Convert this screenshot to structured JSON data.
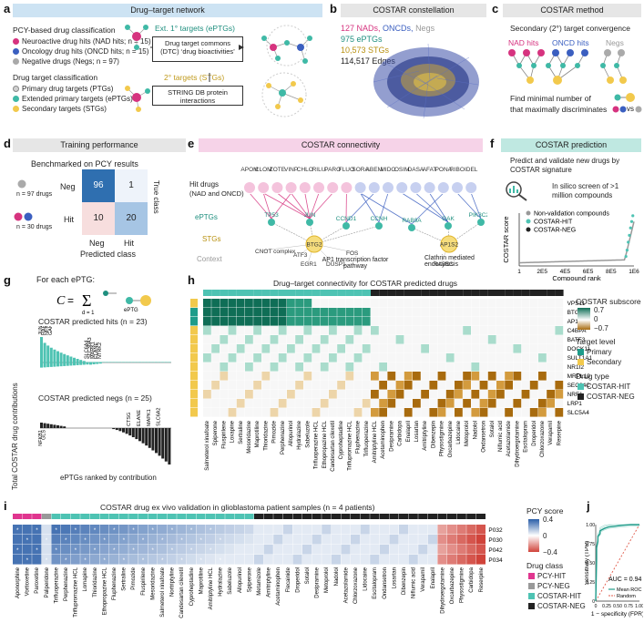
{
  "panel_a": {
    "letter": "a",
    "title": "Drug–target network",
    "pcy_heading": "PCY-based drug classification",
    "pcy_items": [
      "Neuroactive drug hits (NAD hits; n = 15)",
      "Oncology drug hits (ONCD hits; n = 15)",
      "Negative drugs (Negs; n = 97)"
    ],
    "dtc_heading": "Drug target classification",
    "dtc_items": [
      "Primary drug targets (PTGs)",
      "Extended primary targets (ePTGs)",
      "Secondary targets (STGs)"
    ],
    "ext_label": "Ext. 1° targets (ePTGs)",
    "dtc_box": "Drug target commons (DTC) ‘drug bioactivities’",
    "stg_label": "2° targets (STGs)",
    "string_box": "STRING DB protein interactions"
  },
  "panel_b": {
    "letter": "b",
    "title": "COSTAR constellation",
    "stats": [
      "127 NADs, ONCDs, Negs",
      "975 ePTGs",
      "10,573 STGs",
      "114,517 Edges"
    ],
    "nads": "127 NADs,",
    "oncds": "ONCDs,",
    "negs": "Negs",
    "eptgs": "975 ePTGs",
    "stgs": "10,573 STGs",
    "edges": "114,517 Edges"
  },
  "panel_c": {
    "letter": "c",
    "title": "COSTAR method",
    "subtitle": "Secondary (2°) target convergence",
    "nad_hits": "NAD hits",
    "oncd_hits": "ONCD hits",
    "negs": "Negs",
    "find_text_1": "Find minimal number of",
    "find_text_2": "that maximally discriminates",
    "vs": "vs"
  },
  "panel_d": {
    "letter": "d",
    "title": "Training performance",
    "subtitle": "Benchmarked on PCY results",
    "n97": "n = 97 drugs",
    "n30": "n = 30 drugs",
    "row_labels": [
      "Neg",
      "Hit"
    ],
    "col_labels": [
      "Neg",
      "Hit"
    ],
    "matrix": [
      [
        96,
        1
      ],
      [
        10,
        20
      ]
    ],
    "true_class": "True class",
    "pred_class": "Predicted class"
  },
  "panel_e": {
    "letter": "e",
    "title": "COSTAR connectivity",
    "drugs": [
      "APOM",
      "CLOM",
      "ZOTE",
      "VINP",
      "CHLO",
      "RILU",
      "PARO",
      "FLUO",
      "SORA",
      "ABEM",
      "MIDO",
      "OSIM",
      "DASA",
      "AFAT",
      "PONA",
      "RIBO",
      "IDEL"
    ],
    "hit_drugs": "Hit drugs",
    "nad_onc": "(NAD and ONCD)",
    "eptgs_label": "ePTGs",
    "stgs_label": "STGs",
    "context_label": "Context",
    "eptg_nodes": [
      "TP53",
      "JUN",
      "CCND1",
      "CCNH",
      "RAB9A",
      "GAK",
      "PIK3C2A"
    ],
    "stg_nodes": [
      "BTG2",
      "AP1S2"
    ],
    "ctx_nodes": [
      "CNOT complex",
      "ATF3",
      "EGR1",
      "DUSP1",
      "FOS",
      "RAB5C"
    ],
    "ap1_text": "AP1 transcription factor pathway",
    "clathrin_text": "Clathrin mediated endocytosis"
  },
  "panel_f": {
    "letter": "f",
    "title": "COSTAR prediction",
    "text1": "Predict and validate new drugs by COSTAR signature",
    "text2": "In silico screen of >1 million compounds",
    "legend": [
      "Non-validation compounds",
      "COSTAR-HIT",
      "COSTAR-NEG"
    ],
    "ylabel": "COSTAR score",
    "xlabel": "Compound rank",
    "xticks": [
      "1",
      "2E5",
      "4E5",
      "6E5",
      "8E5",
      "1E6"
    ]
  },
  "panel_g": {
    "letter": "g",
    "text1": "For each ePTG:",
    "hits_title": "COSTAR predicted hits (n = 23)",
    "negs_title": "COSTAR predicted negs (n = 25)",
    "ylabel": "Total COSTAR drug contributions",
    "xlabel": "ePTGs ranked by contribution",
    "hit_labels": [
      "JUN",
      "RAB9A",
      "NFKB1",
      "GAK",
      "SLC6A4",
      "SLC30A3",
      "MARK1",
      "ELANE",
      "NTRK2"
    ],
    "neg_labels_left": [
      "NFKB1",
      "GLS"
    ],
    "neg_labels_right": [
      "CTSG",
      "ELANE",
      "MAPK1",
      "SLC6A2"
    ]
  },
  "panel_h": {
    "letter": "h",
    "title": "Drug–target connectivity for COSTAR predicted drugs",
    "rows": [
      "VPS11",
      "BTG2",
      "AP1S2",
      "C4BPA",
      "BATF3",
      "DOCK11",
      "SULT1A1",
      "NR1I2",
      "MRPL19",
      "SEC24C",
      "NRF1",
      "LRP1",
      "SLC5A4"
    ],
    "cols": [
      "Salmeterol xinafoate",
      "Spiperone",
      "Fluspirilene",
      "Loxapine",
      "Sertraline",
      "Mesoridazine",
      "Maprotiline",
      "Thioridazine",
      "Pimozide",
      "Perphenazine",
      "Allopurinol",
      "Hydralazine",
      "Sabeluzole",
      "Trifluoperazine HCL",
      "Ethopropazine HCL",
      "Candesartan cilexetil",
      "Cyproheptadine",
      "Triflupromazine HCL",
      "Fluphenazine",
      "Trifluoperazine",
      "Amitriptyline HCL",
      "Acetaminophen",
      "Desipramine",
      "Carbidopa",
      "Enalapril",
      "Losartan",
      "Amitriptyline",
      "Dibenzepin",
      "Physostigmine",
      "Oxcarbazepine",
      "Lidocaine",
      "Metoprolol",
      "Nadolol",
      "Ondansetron",
      "Sotalol",
      "Niflumic acid",
      "Acetazolamide",
      "Dihydroergotamine",
      "Escitalopram",
      "Droperidol",
      "Chlorzoxazone",
      "Verapamil",
      "Reserpine"
    ],
    "legend_title": "COSTAR subscore",
    "legend_max": "0.7",
    "legend_mid": "0",
    "legend_min": "−0.7",
    "target_level": "Target level",
    "primary": "Primary",
    "secondary": "Secondary",
    "drug_type": "Drug type",
    "costar_hit": "COSTAR-HIT",
    "costar_neg": "COSTAR-NEG"
  },
  "panel_i": {
    "letter": "i",
    "title": "COSTAR drug ex vivo validation in glioblastoma patient samples (n = 4 patients)",
    "rows": [
      "P032",
      "P030",
      "P042",
      "P034"
    ],
    "cols": [
      "Aponorphine",
      "Vortioxetine",
      "Paroxetine",
      "Paliperidone",
      "Trifluoperazine",
      "Perphenazine",
      "Triflupromazine HCL",
      "Lomapine",
      "Thioridazine",
      "Ethopropazine HCL",
      "Fluphenazine",
      "Sertraline",
      "Pimozide",
      "Fluspirilene",
      "Mesoridazine",
      "Salmeterol xinafoate",
      "Nortriptyline",
      "Candesartan cilexetil",
      "Cyproheptadine",
      "Maprotiline",
      "Amitriptyline HCL",
      "Hydralazine",
      "Sabeluzole",
      "Allopurinol",
      "Spiperone",
      "Metamizole",
      "Amitriptyline",
      "Acetaminophen",
      "Flecainide",
      "Droperidol",
      "Sotalol",
      "Desipramine",
      "Metoprolol",
      "Nadolol",
      "Acetazolamide",
      "Chlorzoxazone",
      "Lidocaine",
      "Escitalopram",
      "Ondansetron",
      "Losartan",
      "Dibenzepin",
      "Niflumic acid",
      "Verapamil",
      "Enalapril",
      "Dihydroergotamine",
      "Oxcarbazepine",
      "Physostigmine",
      "Carbidopa",
      "Reserpine"
    ],
    "legend_title": "PCY score",
    "legend_max": "0.4",
    "legend_mid": "0",
    "legend_min": "−0.4",
    "drug_class": "Drug class",
    "classes": [
      "PCY-HIT",
      "PCY-NEG",
      "COSTAR-HIT",
      "COSTAR-NEG"
    ]
  },
  "panel_j": {
    "letter": "j",
    "ylabel": "Sensitivity (TPR)",
    "xlabel": "1 − specificity (FPR)",
    "auc": "AUC = 0.94",
    "legend": [
      "Mean ROC",
      "Random"
    ],
    "xticks": [
      "0",
      "0.25",
      "0.50",
      "0.75",
      "1.00"
    ],
    "yticks": [
      "0",
      "0.25",
      "0.50",
      "0.75",
      "1.00"
    ]
  },
  "chart_data": [
    {
      "type": "heatmap",
      "title": "Training performance",
      "rows": [
        "Neg",
        "Hit"
      ],
      "cols": [
        "Neg",
        "Hit"
      ],
      "values": [
        [
          96,
          1
        ],
        [
          10,
          20
        ]
      ],
      "xlabel": "Predicted class",
      "ylabel": "True class"
    },
    {
      "type": "line",
      "title": "AUC = 0.94",
      "xlabel": "1 − specificity (FPR)",
      "ylabel": "Sensitivity (TPR)",
      "xlim": [
        0,
        1
      ],
      "ylim": [
        0,
        1
      ],
      "series": [
        {
          "name": "Mean ROC",
          "x": [
            0,
            0.02,
            0.02,
            0.05,
            0.05,
            0.1,
            0.1,
            0.2,
            0.3,
            0.45,
            0.6,
            0.8,
            1.0
          ],
          "y": [
            0,
            0.55,
            0.7,
            0.78,
            0.85,
            0.88,
            0.92,
            0.95,
            0.97,
            0.98,
            0.99,
            1.0,
            1.0
          ]
        },
        {
          "name": "Random",
          "x": [
            0,
            1
          ],
          "y": [
            0,
            1
          ]
        }
      ]
    }
  ],
  "colors": {
    "nad": "#d6337f",
    "oncd": "#3b5fc0",
    "neg": "#a9a9a9",
    "eptg": "#3fb9a6",
    "stg": "#f2c94c",
    "hit_teal": "#4ec3b3",
    "neg_black": "#222222"
  }
}
